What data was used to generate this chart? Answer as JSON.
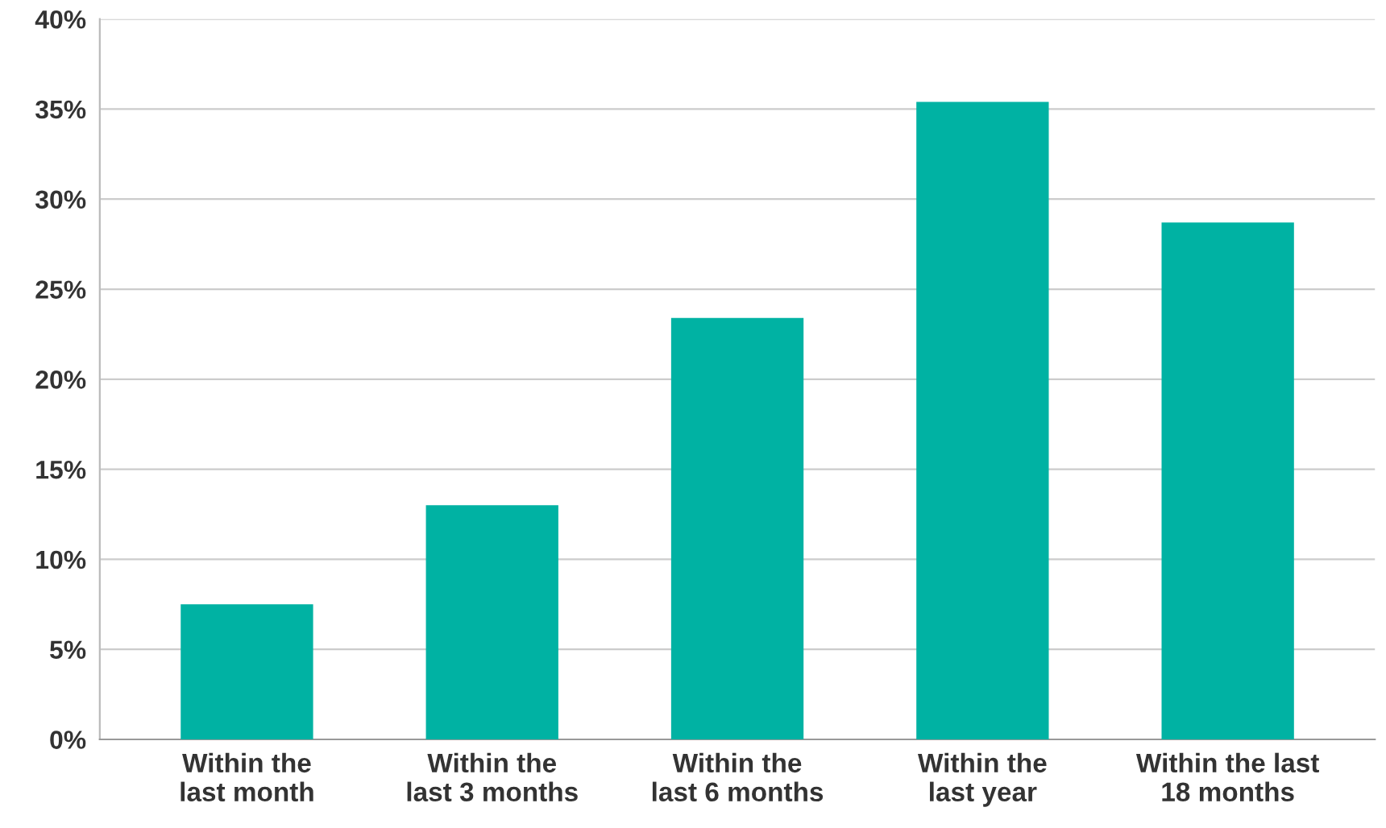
{
  "chart_data": {
    "type": "bar",
    "categories": [
      "Within the\nlast month",
      "Within the\nlast 3 months",
      "Within the\nlast 6 months",
      "Within the\nlast year",
      "Within the last\n18 months"
    ],
    "values": [
      7.5,
      13.0,
      23.4,
      35.4,
      28.7
    ],
    "color": "#00b2a3",
    "ylim": [
      0,
      40
    ],
    "yticks": [
      {
        "value": 0,
        "label": "0%"
      },
      {
        "value": 5,
        "label": "5%"
      },
      {
        "value": 10,
        "label": "10%"
      },
      {
        "value": 15,
        "label": "15%"
      },
      {
        "value": 20,
        "label": "20%"
      },
      {
        "value": 25,
        "label": "25%"
      },
      {
        "value": 30,
        "label": "30%"
      },
      {
        "value": 35,
        "label": "35%"
      },
      {
        "value": 40,
        "label": "40%"
      }
    ],
    "grid": "y",
    "legend": false
  }
}
